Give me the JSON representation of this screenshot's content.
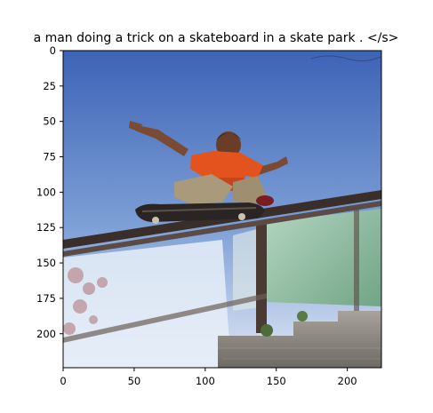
{
  "figure": {
    "title": "a man doing a trick on a skateboard in a skate park . </s>"
  },
  "axes": {
    "x_ticks": [
      0,
      50,
      100,
      150,
      200
    ],
    "y_ticks": [
      0,
      25,
      50,
      75,
      100,
      125,
      150,
      175,
      200
    ],
    "x_range": [
      0,
      224
    ],
    "y_range": [
      0,
      224
    ],
    "y_inverted": true
  },
  "image": {
    "description_icon": "photo-skateboarder-grinding-rail",
    "colors": {
      "sky_top": "#3f66b8",
      "sky_bottom": "#cfdcef",
      "shirt": "#e4531e",
      "rail": "#3a2e2a",
      "glass": "#9fc8a4"
    }
  }
}
